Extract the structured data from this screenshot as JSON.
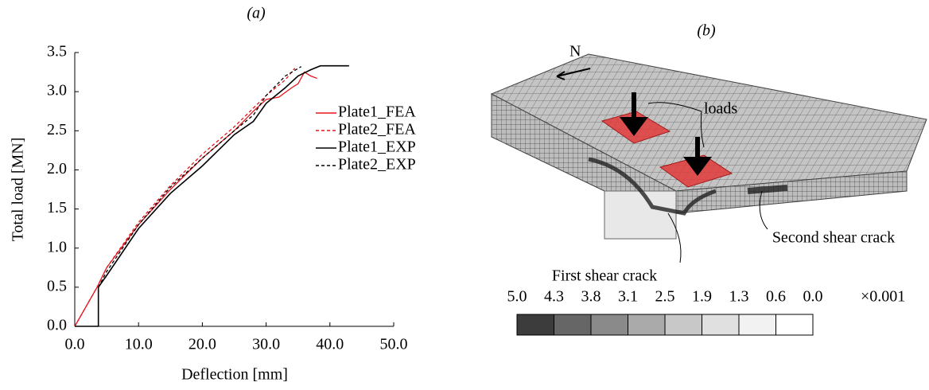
{
  "chart_data": {
    "type": "line",
    "title": "(a)",
    "x_label": "Deflection [mm]",
    "y_label": "Total load [MN]",
    "xlim": [
      0,
      50
    ],
    "ylim": [
      0,
      3.5
    ],
    "xticks": [
      {
        "value": 0,
        "label": "0.0"
      },
      {
        "value": 10,
        "label": "10.0"
      },
      {
        "value": 20,
        "label": "20.0"
      },
      {
        "value": 30,
        "label": "30.0"
      },
      {
        "value": 40,
        "label": "40.0"
      },
      {
        "value": 50,
        "label": "50.0"
      }
    ],
    "yticks": [
      {
        "value": 0,
        "label": "0.0"
      },
      {
        "value": 0.5,
        "label": "0.5"
      },
      {
        "value": 1,
        "label": "1.0"
      },
      {
        "value": 1.5,
        "label": "1.5"
      },
      {
        "value": 2,
        "label": "2.0"
      },
      {
        "value": 2.5,
        "label": "2.5"
      },
      {
        "value": 3,
        "label": "3.0"
      },
      {
        "value": 3.5,
        "label": "3.5"
      }
    ],
    "legend": "center right",
    "series": [
      {
        "name": "Plate1_FEA",
        "color": "#e8141c",
        "dashed": false,
        "x": [
          0,
          3.5,
          5,
          10,
          15,
          20,
          25,
          28,
          30,
          32,
          34,
          35,
          36,
          37,
          38
        ],
        "values": [
          0,
          0.5,
          0.75,
          1.3,
          1.75,
          2.15,
          2.5,
          2.75,
          2.9,
          2.93,
          3.05,
          3.1,
          3.25,
          3.2,
          3.17
        ]
      },
      {
        "name": "Plate2_FEA",
        "color": "#e8141c",
        "dashed": true,
        "x": [
          0,
          3.5,
          5,
          10,
          15,
          20,
          25,
          30,
          33,
          34.5
        ],
        "values": [
          0,
          0.5,
          0.75,
          1.33,
          1.8,
          2.2,
          2.55,
          2.95,
          3.15,
          3.3
        ]
      },
      {
        "name": "Plate1_EXP",
        "color": "#000000",
        "dashed": false,
        "x": [
          0,
          3.7,
          3.7,
          5,
          10,
          15,
          20,
          25,
          28,
          30,
          33,
          35,
          37,
          38.5,
          43
        ],
        "values": [
          0,
          0,
          0.5,
          0.65,
          1.25,
          1.7,
          2.05,
          2.45,
          2.62,
          2.85,
          3.05,
          3.2,
          3.28,
          3.33,
          3.33
        ]
      },
      {
        "name": "Plate2_EXP",
        "color": "#000000",
        "dashed": true,
        "x": [
          3.7,
          3.7,
          5,
          10,
          15,
          20,
          25,
          28,
          30,
          33,
          35.5
        ],
        "values": [
          0,
          0.5,
          0.7,
          1.3,
          1.78,
          2.15,
          2.5,
          2.7,
          2.95,
          3.2,
          3.32
        ]
      }
    ]
  },
  "panel_b": {
    "title": "(b)",
    "north": "N",
    "loads": "loads",
    "first_crack": "First shear crack",
    "second_crack": "Second shear crack",
    "colorbar": {
      "unit": "×0.001",
      "ticks": [
        {
          "value": 5,
          "label": "5.0"
        },
        {
          "value": 4.3,
          "label": "4.3"
        },
        {
          "value": 3.8,
          "label": "3.8"
        },
        {
          "value": 3.1,
          "label": "3.1"
        },
        {
          "value": 2.5,
          "label": "2.5"
        },
        {
          "value": 1.9,
          "label": "1.9"
        },
        {
          "value": 1.3,
          "label": "1.3"
        },
        {
          "value": 0.6,
          "label": "0.6"
        },
        {
          "value": 0,
          "label": "0.0"
        }
      ],
      "colors": [
        "#3c3c3c",
        "#666666",
        "#8a8a8a",
        "#aaaaaa",
        "#c8c8c8",
        "#e0e0e0",
        "#f2f2f2",
        "#ffffff"
      ]
    }
  }
}
